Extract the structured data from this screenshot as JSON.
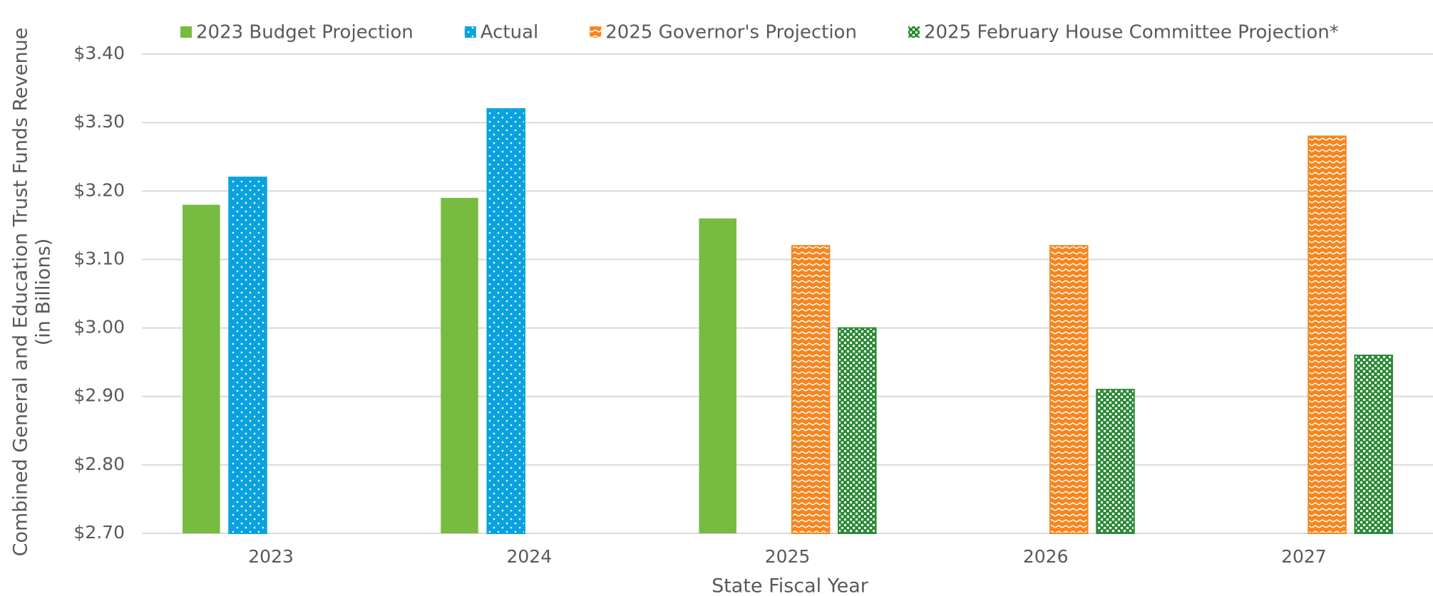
{
  "chart_data": {
    "type": "bar",
    "y_axis_label": [
      "Combined General and Education Trust Funds Revenue",
      "(in Billions)"
    ],
    "x_axis_label": "State Fiscal Year",
    "categories": [
      "2023",
      "2024",
      "2025",
      "2026",
      "2027"
    ],
    "series": [
      {
        "name": "2023 Budget Projection",
        "color": "#77bb41",
        "values": [
          3.18,
          3.19,
          3.16,
          null,
          null
        ]
      },
      {
        "name": "Actual",
        "color": "#0aa2de",
        "values": [
          3.22,
          3.32,
          null,
          null,
          null
        ]
      },
      {
        "name": "2025 Governor's Projection",
        "color": "#f5861f",
        "values": [
          null,
          null,
          3.12,
          3.12,
          3.28
        ]
      },
      {
        "name": "2025 February House Committee Projection*",
        "color": "#2e8b3a",
        "values": [
          null,
          null,
          3.0,
          2.91,
          2.96
        ]
      }
    ],
    "ylim": [
      2.7,
      3.4
    ],
    "yticks": [
      {
        "value": 2.7,
        "label": "$2.70"
      },
      {
        "value": 2.8,
        "label": "$2.80"
      },
      {
        "value": 2.9,
        "label": "$2.90"
      },
      {
        "value": 3.0,
        "label": "$3.00"
      },
      {
        "value": 3.1,
        "label": "$3.10"
      },
      {
        "value": 3.2,
        "label": "$3.20"
      },
      {
        "value": 3.3,
        "label": "$3.30"
      },
      {
        "value": 3.4,
        "label": "$3.40"
      }
    ],
    "grid": true,
    "legend": "top"
  }
}
